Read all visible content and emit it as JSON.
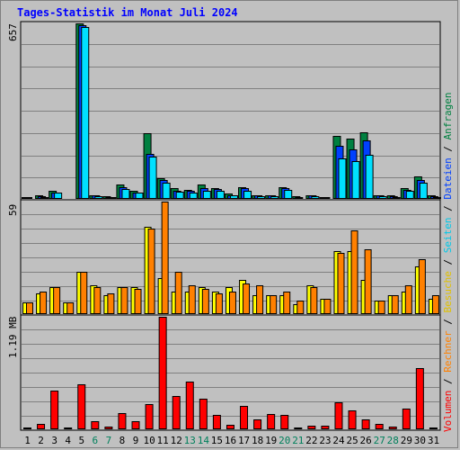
{
  "title": "Tages-Statistik im Monat Juli 2024",
  "panel_max_labels": {
    "requests": "657",
    "visits": "59",
    "volume": "1.19 MB"
  },
  "legend": {
    "volume": "Volumen",
    "rechner": "Rechner",
    "besuche": "Besuche",
    "seiten": "Seiten",
    "dateien": "Dateien",
    "anfragen": "Anfragen",
    "sep": " / "
  },
  "colors": {
    "anfragen": "#008040",
    "dateien": "#0040FF",
    "seiten": "#00E0FF",
    "besuche": "#FFFF00",
    "rechner": "#FF8000",
    "volumen": "#FF0000",
    "weekend_day": "#00805c",
    "weekday": "#000000",
    "background": "#C0C0C0"
  },
  "chart_data": [
    {
      "type": "bar",
      "title": "Anfragen / Dateien / Seiten",
      "categories": [
        "1",
        "2",
        "3",
        "4",
        "5",
        "6",
        "7",
        "8",
        "9",
        "10",
        "11",
        "12",
        "13",
        "14",
        "15",
        "16",
        "17",
        "18",
        "19",
        "20",
        "21",
        "22",
        "23",
        "24",
        "25",
        "26",
        "27",
        "28",
        "29",
        "30",
        "31"
      ],
      "weekend_days": [
        6,
        7,
        13,
        14,
        20,
        21,
        27,
        28
      ],
      "ylim": [
        0,
        657
      ],
      "series": [
        {
          "name": "Anfragen",
          "values": [
            8,
            12,
            30,
            5,
            657,
            15,
            10,
            55,
            30,
            245,
            78,
            40,
            35,
            55,
            40,
            20,
            45,
            15,
            15,
            45,
            10,
            15,
            8,
            235,
            225,
            250,
            14,
            12,
            40,
            85,
            14
          ]
        },
        {
          "name": "Dateien",
          "values": [
            6,
            10,
            25,
            4,
            650,
            12,
            8,
            45,
            25,
            170,
            72,
            32,
            30,
            42,
            36,
            15,
            40,
            12,
            12,
            40,
            8,
            12,
            6,
            200,
            185,
            220,
            12,
            10,
            35,
            70,
            10
          ]
        },
        {
          "name": "Seiten",
          "values": [
            5,
            8,
            22,
            3,
            645,
            10,
            6,
            38,
            22,
            160,
            60,
            28,
            25,
            30,
            32,
            12,
            30,
            10,
            10,
            35,
            5,
            10,
            4,
            150,
            140,
            165,
            10,
            8,
            30,
            60,
            8
          ]
        }
      ]
    },
    {
      "type": "bar",
      "title": "Besuche / Rechner",
      "categories": [
        "1",
        "2",
        "3",
        "4",
        "5",
        "6",
        "7",
        "8",
        "9",
        "10",
        "11",
        "12",
        "13",
        "14",
        "15",
        "16",
        "17",
        "18",
        "19",
        "20",
        "21",
        "22",
        "23",
        "24",
        "25",
        "26",
        "27",
        "28",
        "29",
        "30",
        "31"
      ],
      "ylim": [
        0,
        59
      ],
      "series": [
        {
          "name": "Besuche",
          "values": [
            6,
            11,
            14,
            6,
            22,
            15,
            10,
            14,
            14,
            46,
            19,
            12,
            12,
            14,
            12,
            14,
            18,
            10,
            10,
            10,
            5,
            15,
            8,
            33,
            33,
            18,
            7,
            10,
            12,
            25,
            8
          ]
        },
        {
          "name": "Rechner",
          "values": [
            6,
            12,
            14,
            6,
            22,
            14,
            11,
            14,
            13,
            45,
            59,
            22,
            15,
            13,
            11,
            12,
            16,
            15,
            10,
            12,
            7,
            14,
            8,
            32,
            44,
            34,
            7,
            10,
            15,
            29,
            10
          ]
        }
      ]
    },
    {
      "type": "bar",
      "title": "Volumen",
      "categories": [
        "1",
        "2",
        "3",
        "4",
        "5",
        "6",
        "7",
        "8",
        "9",
        "10",
        "11",
        "12",
        "13",
        "14",
        "15",
        "16",
        "17",
        "18",
        "19",
        "20",
        "21",
        "22",
        "23",
        "24",
        "25",
        "26",
        "27",
        "28",
        "29",
        "30",
        "31"
      ],
      "ylim": [
        0,
        1.19
      ],
      "series": [
        {
          "name": "Volumen",
          "values": [
            0.02,
            0.06,
            0.41,
            0.02,
            0.48,
            0.09,
            0.03,
            0.17,
            0.09,
            0.27,
            1.19,
            0.35,
            0.5,
            0.32,
            0.15,
            0.05,
            0.25,
            0.1,
            0.16,
            0.15,
            0.02,
            0.04,
            0.04,
            0.29,
            0.2,
            0.1,
            0.06,
            0.03,
            0.22,
            0.65,
            0.02
          ]
        }
      ]
    }
  ]
}
